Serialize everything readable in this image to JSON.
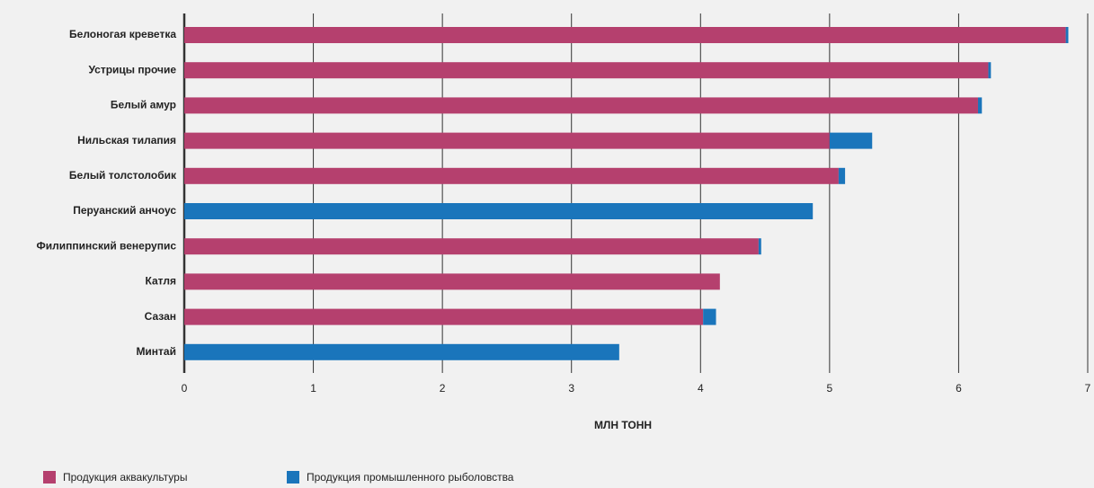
{
  "chart_data": {
    "type": "stacked-barh",
    "categories": [
      "Белоногая креветка",
      "Устрицы прочие",
      "Белый амур",
      "Нильская тилапия",
      "Белый толстолобик",
      "Перуанский анчоус",
      "Филиппинский венерупис",
      "Катля",
      "Сазан",
      "Минтай"
    ],
    "series": [
      {
        "name": "Продукция аквакультуры",
        "color": "#b5406e",
        "values": [
          6.83,
          6.23,
          6.15,
          5.0,
          5.07,
          0,
          4.45,
          4.15,
          4.02,
          0
        ]
      },
      {
        "name": "Продукция промышленного рыболовства",
        "color": "#1a75bb",
        "values": [
          0.02,
          0.02,
          0.03,
          0.33,
          0.05,
          4.87,
          0.02,
          0,
          0.1,
          3.37
        ]
      }
    ],
    "xlabel": "МЛН ТОНН",
    "xlim": [
      0,
      7
    ],
    "xticks": [
      0,
      1,
      2,
      3,
      4,
      5,
      6,
      7
    ],
    "grid": true,
    "legend": "bottom-left"
  }
}
